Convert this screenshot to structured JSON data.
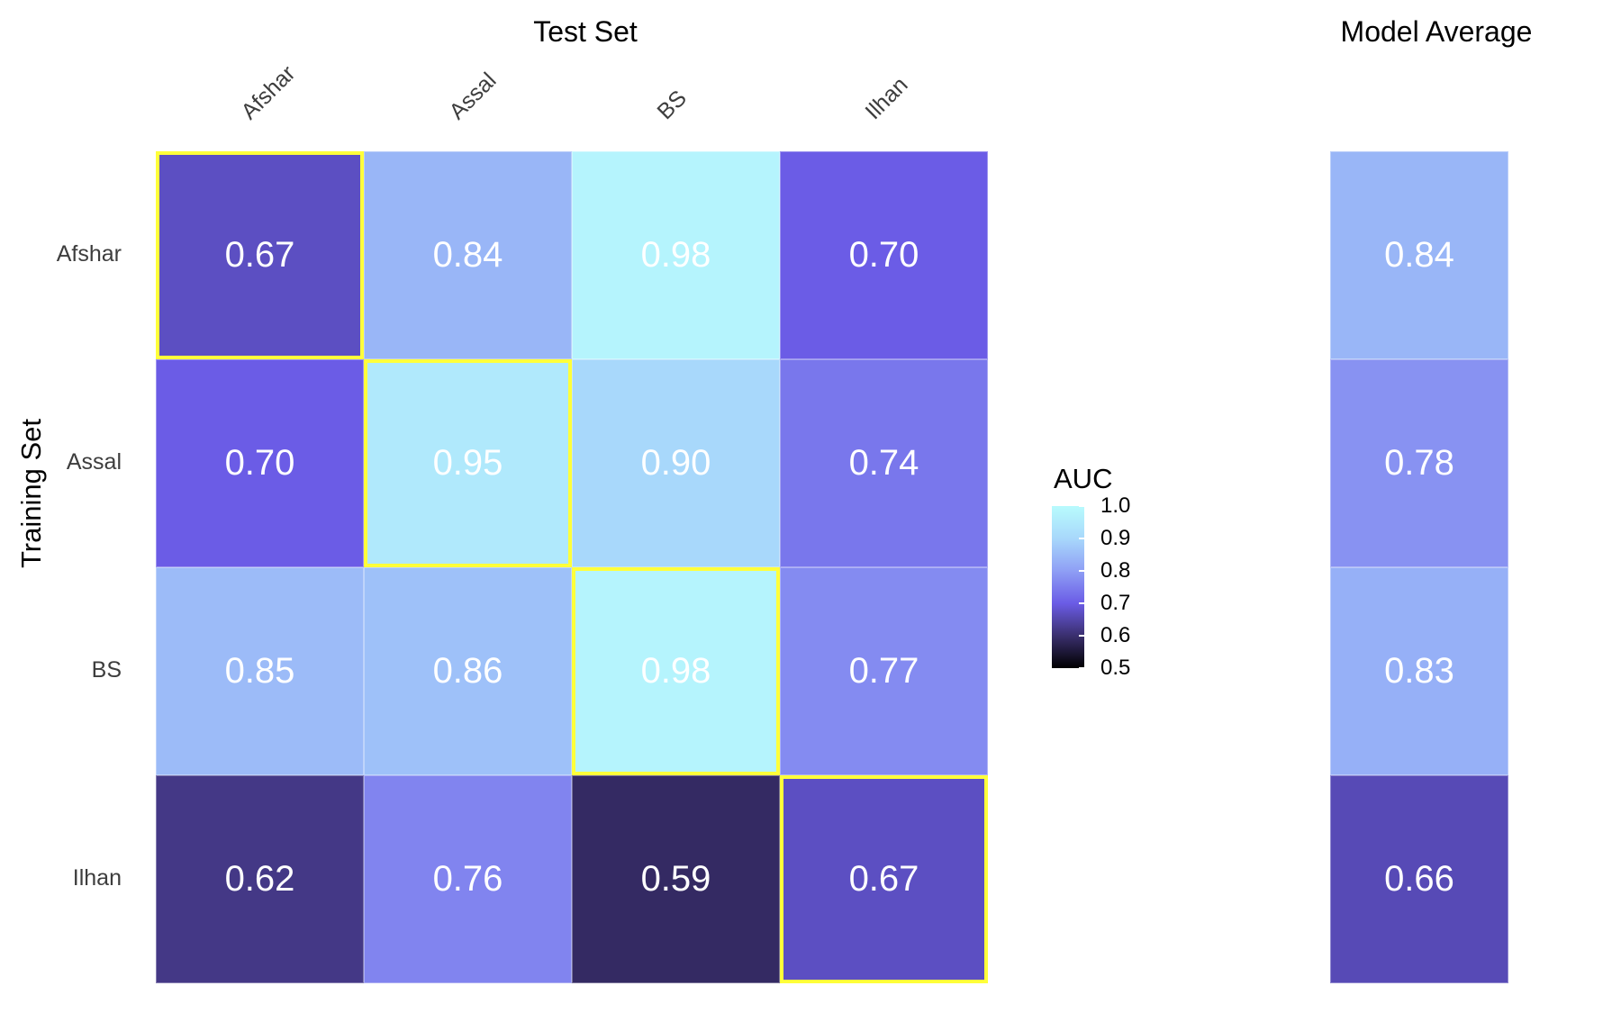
{
  "chart_data": {
    "type": "heatmap",
    "title": "Test Set",
    "ylabel": "Training Set",
    "test_sets": [
      "Afshar",
      "Assal",
      "BS",
      "Ilhan"
    ],
    "training_sets": [
      "Afshar",
      "Assal",
      "BS",
      "Ilhan"
    ],
    "values": [
      [
        0.67,
        0.84,
        0.98,
        0.7
      ],
      [
        0.7,
        0.95,
        0.9,
        0.74
      ],
      [
        0.85,
        0.86,
        0.98,
        0.77
      ],
      [
        0.62,
        0.76,
        0.59,
        0.67
      ]
    ],
    "value_labels": [
      [
        "0.67",
        "0.84",
        "0.98",
        "0.70"
      ],
      [
        "0.70",
        "0.95",
        "0.90",
        "0.74"
      ],
      [
        "0.85",
        "0.86",
        "0.98",
        "0.77"
      ],
      [
        "0.62",
        "0.76",
        "0.59",
        "0.67"
      ]
    ],
    "highlight": "diagonal",
    "highlight_color": "#ffff3a",
    "average_panel": {
      "title": "Model Average",
      "values": [
        0.84,
        0.78,
        0.83,
        0.66
      ],
      "value_labels": [
        "0.84",
        "0.78",
        "0.83",
        "0.66"
      ]
    },
    "legend": {
      "title": "AUC",
      "range": [
        0.5,
        1.0
      ],
      "ticks": [
        "1.0",
        "0.9",
        "0.8",
        "0.7",
        "0.6",
        "0.5"
      ],
      "color_stops": [
        {
          "value": 0.5,
          "color": "#000000"
        },
        {
          "value": 0.6,
          "color": "#3a2f6e"
        },
        {
          "value": 0.7,
          "color": "#6b5ce6"
        },
        {
          "value": 0.8,
          "color": "#8f9ff5"
        },
        {
          "value": 0.9,
          "color": "#a8d8fb"
        },
        {
          "value": 1.0,
          "color": "#b8fbfd"
        }
      ],
      "placement": "right"
    }
  }
}
